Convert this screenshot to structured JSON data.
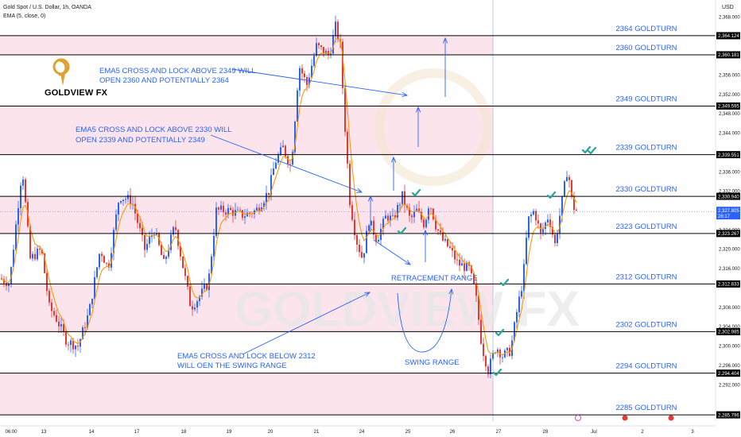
{
  "header": {
    "symbol_line": "Gold Spot / U.S. Dollar, 1h, OANDA",
    "indicator_line": "EMA (5, close, 0)",
    "currency": "USD"
  },
  "brand": {
    "name": "GOLDVIEW FX",
    "watermark": "GOLDVIEW FX"
  },
  "colors": {
    "bull": "#2962ff",
    "bear": "#e53935",
    "ema": "#ff9800",
    "zone": "#fce4ec",
    "level_line": "#000000",
    "annotation": "#2962ff",
    "check": "#26a69a"
  },
  "annotations": [
    {
      "text": "EMA5 CROSS AND LOCK ABOVE 2349 WILL",
      "text2": "OPEN 2360 AND POTENTIALLY 2364"
    },
    {
      "text": "EMA5 CROSS AND LOCK ABOVE 2330 WILL",
      "text2": "OPEN 2339 AND POTENTIALLY 2349"
    },
    {
      "text": "EMA5 CROSS AND LOCK BELOW 2312",
      "text2": "WILL OEN THE SWING RANGE"
    },
    {
      "text": "RETRACEMENT RANGE",
      "text2": ""
    },
    {
      "text": "SWING RANGE",
      "text2": ""
    }
  ],
  "chart_data": {
    "type": "candlestick",
    "title": "Gold Spot / U.S. Dollar, 1h, OANDA",
    "ylim": [
      2284.5,
      2371.5
    ],
    "y_ticks": [
      "2,292.000",
      "2,296.000",
      "2,300.000",
      "2,304.000",
      "2,308.000",
      "2,316.000",
      "2,320.000",
      "2,324.000",
      "2,332.000",
      "2,336.000",
      "2,344.000",
      "2,348.000",
      "2,352.000",
      "2,356.000",
      "2,368.000"
    ],
    "y_tick_values": [
      2292,
      2296,
      2300,
      2304,
      2308,
      2316,
      2320,
      2324,
      2332,
      2336,
      2344,
      2348,
      2352,
      2356,
      2368
    ],
    "x_tick_labels": [
      "06:00",
      "13",
      "14",
      "17",
      "18",
      "19",
      "20",
      "21",
      "24",
      "25",
      "26",
      "27",
      "28",
      "Jul",
      "2",
      "3"
    ],
    "levels": [
      {
        "value": 2364.124,
        "label": "2364 GOLDTURN",
        "tag": "2,364.124"
      },
      {
        "value": 2360.181,
        "label": "2360 GOLDTURN",
        "tag": "2,360.181"
      },
      {
        "value": 2349.595,
        "label": "2349 GOLDTURN",
        "tag": "2,349.595"
      },
      {
        "value": 2339.551,
        "label": "2339 GOLDTURN",
        "tag": "2,339.551"
      },
      {
        "value": 2330.94,
        "label": "2330 GOLDTURN",
        "tag": "2,330.940"
      },
      {
        "value": 2323.267,
        "label": "2323 GOLDTURN",
        "tag": "2,323.267"
      },
      {
        "value": 2312.833,
        "label": "2312 GOLDTURN",
        "tag": "2,312.833"
      },
      {
        "value": 2302.985,
        "label": "2302 GOLDTURN",
        "tag": "2,302.985"
      },
      {
        "value": 2294.404,
        "label": "2294 GOLDTURN",
        "tag": "2,294.404"
      },
      {
        "value": 2285.796,
        "label": "2285 GOLDTURN",
        "tag": "2,285.796"
      }
    ],
    "current_price": {
      "value": 2327.805,
      "tag": "2,327.805",
      "countdown": "26:17"
    },
    "key_points": [
      {
        "t": 0,
        "p": 2314
      },
      {
        "t": 12,
        "p": 2313
      },
      {
        "t": 28,
        "p": 2337
      },
      {
        "t": 38,
        "p": 2318
      },
      {
        "t": 52,
        "p": 2320
      },
      {
        "t": 62,
        "p": 2308
      },
      {
        "t": 70,
        "p": 2306
      },
      {
        "t": 84,
        "p": 2301
      },
      {
        "t": 98,
        "p": 2300
      },
      {
        "t": 112,
        "p": 2307
      },
      {
        "t": 126,
        "p": 2320
      },
      {
        "t": 136,
        "p": 2316
      },
      {
        "t": 150,
        "p": 2331
      },
      {
        "t": 166,
        "p": 2330
      },
      {
        "t": 182,
        "p": 2320
      },
      {
        "t": 194,
        "p": 2324
      },
      {
        "t": 206,
        "p": 2317
      },
      {
        "t": 220,
        "p": 2325
      },
      {
        "t": 240,
        "p": 2308
      },
      {
        "t": 250,
        "p": 2310
      },
      {
        "t": 262,
        "p": 2313
      },
      {
        "t": 272,
        "p": 2328
      },
      {
        "t": 288,
        "p": 2328
      },
      {
        "t": 306,
        "p": 2327
      },
      {
        "t": 322,
        "p": 2328
      },
      {
        "t": 338,
        "p": 2332
      },
      {
        "t": 346,
        "p": 2338
      },
      {
        "t": 356,
        "p": 2341
      },
      {
        "t": 366,
        "p": 2337
      },
      {
        "t": 370,
        "p": 2345
      },
      {
        "t": 376,
        "p": 2358
      },
      {
        "t": 386,
        "p": 2354
      },
      {
        "t": 398,
        "p": 2362
      },
      {
        "t": 414,
        "p": 2360
      },
      {
        "t": 422,
        "p": 2366
      },
      {
        "t": 428,
        "p": 2362
      },
      {
        "t": 434,
        "p": 2345
      },
      {
        "t": 440,
        "p": 2330
      },
      {
        "t": 448,
        "p": 2322
      },
      {
        "t": 456,
        "p": 2318
      },
      {
        "t": 464,
        "p": 2326
      },
      {
        "t": 474,
        "p": 2322
      },
      {
        "t": 486,
        "p": 2327
      },
      {
        "t": 494,
        "p": 2326
      },
      {
        "t": 506,
        "p": 2331
      },
      {
        "t": 516,
        "p": 2326
      },
      {
        "t": 524,
        "p": 2328
      },
      {
        "t": 534,
        "p": 2325
      },
      {
        "t": 540,
        "p": 2330
      },
      {
        "t": 548,
        "p": 2325
      },
      {
        "t": 556,
        "p": 2322
      },
      {
        "t": 566,
        "p": 2320
      },
      {
        "t": 576,
        "p": 2317
      },
      {
        "t": 590,
        "p": 2316
      },
      {
        "t": 598,
        "p": 2311
      },
      {
        "t": 606,
        "p": 2300
      },
      {
        "t": 614,
        "p": 2295
      },
      {
        "t": 624,
        "p": 2300
      },
      {
        "t": 632,
        "p": 2298
      },
      {
        "t": 642,
        "p": 2299
      },
      {
        "t": 650,
        "p": 2307
      },
      {
        "t": 658,
        "p": 2314
      },
      {
        "t": 664,
        "p": 2326
      },
      {
        "t": 672,
        "p": 2328
      },
      {
        "t": 680,
        "p": 2323
      },
      {
        "t": 690,
        "p": 2327
      },
      {
        "t": 698,
        "p": 2321
      },
      {
        "t": 706,
        "p": 2329
      },
      {
        "t": 714,
        "p": 2337
      },
      {
        "t": 720,
        "p": 2329
      },
      {
        "t": 726,
        "p": 2327.8
      }
    ]
  }
}
